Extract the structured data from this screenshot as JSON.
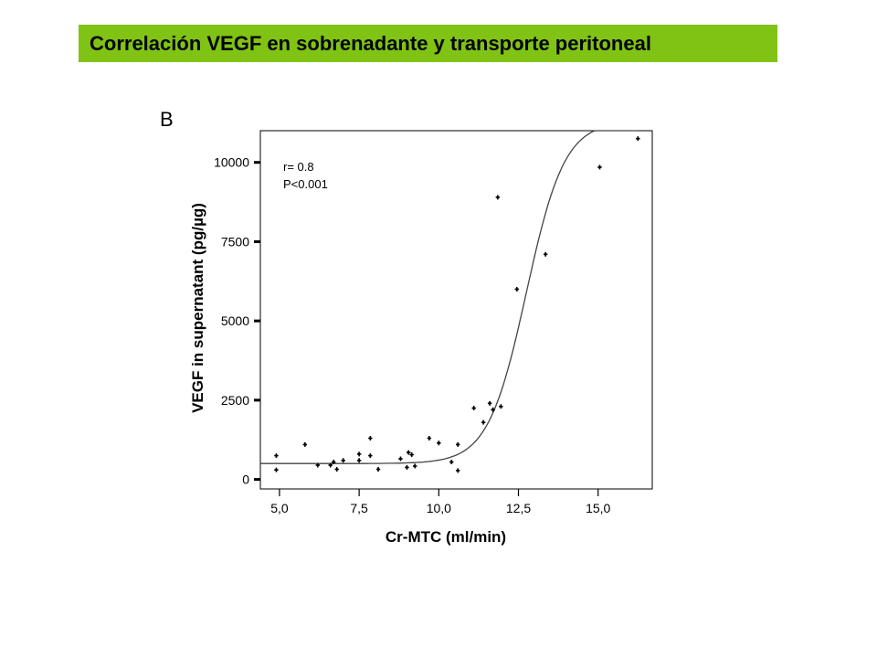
{
  "banner": {
    "title": "Correlación VEGF en sobrenadante y transporte peritoneal",
    "background": "#80c314"
  },
  "chart_data": {
    "type": "scatter",
    "panel_label": "B",
    "xlabel": "Cr-MTC (ml/min)",
    "ylabel": "VEGF in supernatant (pg/µg)",
    "xlim": [
      4.4,
      16.7
    ],
    "ylim": [
      -300,
      11000
    ],
    "x_ticks": [
      5.0,
      7.5,
      10.0,
      12.5,
      15.0
    ],
    "x_tick_labels": [
      "5,0",
      "7,5",
      "10,0",
      "12,5",
      "15,0"
    ],
    "y_ticks": [
      0,
      2500,
      5000,
      7500,
      10000
    ],
    "y_tick_labels": [
      "0",
      "2500",
      "5000",
      "7500",
      "10000"
    ],
    "grid": false,
    "annotations": [
      "r= 0.8",
      "P<0.001"
    ],
    "series": [
      {
        "points": [
          {
            "x": 4.9,
            "y": 300
          },
          {
            "x": 4.9,
            "y": 750
          },
          {
            "x": 5.8,
            "y": 1100
          },
          {
            "x": 6.2,
            "y": 450
          },
          {
            "x": 6.6,
            "y": 450
          },
          {
            "x": 6.7,
            "y": 550
          },
          {
            "x": 6.8,
            "y": 320
          },
          {
            "x": 7.0,
            "y": 600
          },
          {
            "x": 7.5,
            "y": 800
          },
          {
            "x": 7.5,
            "y": 600
          },
          {
            "x": 7.85,
            "y": 1300
          },
          {
            "x": 7.85,
            "y": 750
          },
          {
            "x": 8.1,
            "y": 320
          },
          {
            "x": 8.8,
            "y": 650
          },
          {
            "x": 9.0,
            "y": 380
          },
          {
            "x": 9.05,
            "y": 850
          },
          {
            "x": 9.15,
            "y": 780
          },
          {
            "x": 9.25,
            "y": 420
          },
          {
            "x": 9.7,
            "y": 1300
          },
          {
            "x": 10.0,
            "y": 1150
          },
          {
            "x": 10.4,
            "y": 550
          },
          {
            "x": 10.6,
            "y": 1100
          },
          {
            "x": 10.6,
            "y": 280
          },
          {
            "x": 11.1,
            "y": 2250
          },
          {
            "x": 11.4,
            "y": 1800
          },
          {
            "x": 11.6,
            "y": 2400
          },
          {
            "x": 11.7,
            "y": 2200
          },
          {
            "x": 11.85,
            "y": 8900
          },
          {
            "x": 11.95,
            "y": 2300
          },
          {
            "x": 12.45,
            "y": 6000
          },
          {
            "x": 13.35,
            "y": 7100
          },
          {
            "x": 15.05,
            "y": 9850
          },
          {
            "x": 16.25,
            "y": 10750
          }
        ]
      }
    ],
    "fit_curve": {
      "type": "sigmoid",
      "base": 500,
      "amplitude": 10800,
      "midpoint": 12.75,
      "scale": 0.6
    }
  }
}
